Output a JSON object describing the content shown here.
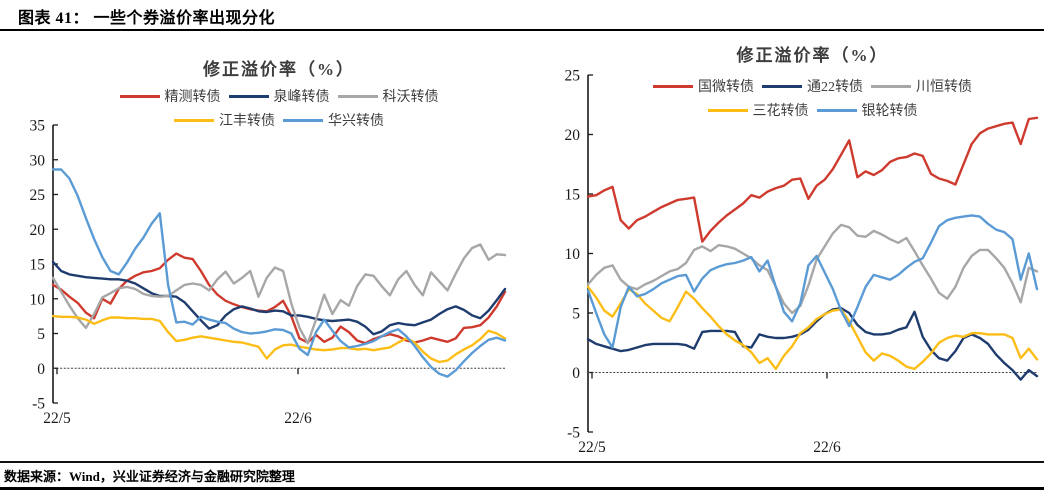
{
  "header": {
    "title": "图表 41： 一些个券溢价率出现分化"
  },
  "footer": {
    "source": "数据来源：Wind，兴业证券经济与金融研究院整理"
  },
  "colors": {
    "red": "#cf3a2e",
    "navy": "#1f3c6e",
    "gray": "#a7a7a7",
    "yellow": "#fcbd17",
    "lightblue": "#5b9bd5",
    "axis": "#1a1a1a"
  },
  "chart_data": [
    {
      "type": "line",
      "title": "修正溢价率（%）",
      "xlabel": "",
      "ylabel": "",
      "ylim": [
        -5,
        35
      ],
      "ytick_step": 5,
      "yticks": [
        35,
        30,
        25,
        20,
        15,
        10,
        5,
        0,
        -5
      ],
      "x_ticks": [
        "22/5",
        "22/6"
      ],
      "grid": false,
      "legend_position": "top",
      "series": [
        {
          "name": "精测转债",
          "color": "#cf3a2e",
          "values": [
            12.0,
            11.3,
            10.3,
            9.4,
            8.0,
            7.2,
            10.0,
            9.3,
            11.4,
            12.6,
            13.3,
            13.8,
            14.0,
            14.4,
            15.6,
            16.5,
            15.9,
            15.7,
            14.0,
            12.0,
            10.6,
            9.7,
            9.2,
            8.8,
            8.5,
            8.3,
            8.2,
            8.8,
            9.7,
            7.5,
            4.3,
            3.7,
            4.8,
            3.8,
            4.4,
            6.0,
            5.2,
            4.0,
            3.6,
            4.2,
            4.6,
            4.9,
            4.6,
            4.0,
            3.7,
            4.0,
            4.4,
            4.1,
            3.8,
            4.3,
            5.8,
            5.9,
            6.2,
            7.3,
            8.9,
            11.0
          ]
        },
        {
          "name": "泉峰转债",
          "color": "#1f3c6e",
          "values": [
            15.3,
            14.0,
            13.5,
            13.3,
            13.1,
            13.0,
            12.9,
            12.8,
            12.8,
            12.6,
            12.2,
            11.5,
            10.8,
            10.4,
            10.4,
            10.3,
            9.5,
            8.2,
            6.9,
            5.7,
            6.2,
            7.6,
            8.5,
            8.9,
            8.6,
            8.2,
            8.1,
            8.3,
            8.2,
            7.6,
            7.6,
            7.4,
            7.1,
            6.9,
            6.8,
            6.9,
            7.0,
            6.7,
            6.0,
            4.9,
            5.3,
            6.2,
            6.5,
            6.3,
            6.2,
            6.6,
            7.0,
            7.8,
            8.5,
            8.9,
            8.4,
            7.6,
            7.2,
            8.3,
            9.8,
            11.4
          ]
        },
        {
          "name": "科沃转债",
          "color": "#a7a7a7",
          "values": [
            13.0,
            11.0,
            9.0,
            7.2,
            5.8,
            7.8,
            10.2,
            10.8,
            11.5,
            11.7,
            11.4,
            10.7,
            10.4,
            10.3,
            10.4,
            11.2,
            12.0,
            12.2,
            12.0,
            11.2,
            12.8,
            13.9,
            12.2,
            13.0,
            14.0,
            10.3,
            13.0,
            14.5,
            14.0,
            9.3,
            5.8,
            3.6,
            7.0,
            10.6,
            7.8,
            9.8,
            9.0,
            11.8,
            13.5,
            13.3,
            11.8,
            10.5,
            12.8,
            14.0,
            12.0,
            10.5,
            13.8,
            12.5,
            11.2,
            13.6,
            15.8,
            17.3,
            17.8,
            15.6,
            16.4,
            16.3
          ]
        },
        {
          "name": "江丰转债",
          "color": "#fcbd17",
          "values": [
            7.5,
            7.4,
            7.4,
            7.3,
            7.0,
            6.4,
            6.9,
            7.3,
            7.3,
            7.2,
            7.2,
            7.1,
            7.1,
            6.8,
            5.2,
            3.9,
            4.1,
            4.4,
            4.6,
            4.4,
            4.2,
            4.0,
            3.8,
            3.7,
            3.4,
            3.1,
            1.4,
            2.7,
            3.3,
            3.4,
            3.1,
            2.9,
            2.7,
            2.6,
            2.7,
            2.9,
            2.9,
            2.7,
            2.8,
            2.6,
            2.8,
            3.0,
            3.7,
            4.3,
            3.7,
            2.4,
            1.4,
            0.9,
            1.1,
            2.0,
            2.7,
            3.3,
            4.2,
            5.4,
            5.0,
            4.3
          ]
        },
        {
          "name": "华兴转债",
          "color": "#5b9bd5",
          "values": [
            28.6,
            28.6,
            27.3,
            24.8,
            21.6,
            18.6,
            16.0,
            14.0,
            13.5,
            15.2,
            17.2,
            18.8,
            20.8,
            22.3,
            12.0,
            6.6,
            6.7,
            6.3,
            7.4,
            7.0,
            6.7,
            6.5,
            5.7,
            5.2,
            5.0,
            5.1,
            5.3,
            5.6,
            5.5,
            5.0,
            2.8,
            1.9,
            5.2,
            7.0,
            5.4,
            3.9,
            3.0,
            3.2,
            3.5,
            3.9,
            4.6,
            5.2,
            5.6,
            4.6,
            3.2,
            1.6,
            0.2,
            -0.8,
            -1.2,
            -0.3,
            1.0,
            2.2,
            3.2,
            4.1,
            4.4,
            4.0
          ]
        }
      ]
    },
    {
      "type": "line",
      "title": "修正溢价率（%）",
      "xlabel": "",
      "ylabel": "",
      "ylim": [
        -5,
        25
      ],
      "ytick_step": 5,
      "yticks": [
        25,
        20,
        15,
        10,
        5,
        0,
        -5
      ],
      "x_ticks": [
        "22/5",
        "22/6"
      ],
      "grid": false,
      "legend_position": "top",
      "series": [
        {
          "name": "国微转债",
          "color": "#cf3a2e",
          "values": [
            14.8,
            14.9,
            15.3,
            15.6,
            12.8,
            12.1,
            12.8,
            13.1,
            13.5,
            13.9,
            14.2,
            14.5,
            14.6,
            14.7,
            11.0,
            11.9,
            12.6,
            13.2,
            13.7,
            14.2,
            14.9,
            14.7,
            15.2,
            15.5,
            15.7,
            16.2,
            16.3,
            14.6,
            15.7,
            16.2,
            17.1,
            18.3,
            19.5,
            16.4,
            16.9,
            16.6,
            17.0,
            17.7,
            18.0,
            18.1,
            18.4,
            18.2,
            16.7,
            16.3,
            16.1,
            15.8,
            17.5,
            19.2,
            20.1,
            20.5,
            20.7,
            20.9,
            21.0,
            19.2,
            21.3,
            21.4
          ]
        },
        {
          "name": "通22转债",
          "color": "#1f3c6e",
          "values": [
            2.8,
            2.4,
            2.2,
            2.0,
            1.8,
            1.9,
            2.1,
            2.3,
            2.4,
            2.4,
            2.4,
            2.4,
            2.3,
            2.0,
            3.4,
            3.5,
            3.5,
            3.5,
            3.4,
            2.2,
            2.1,
            3.2,
            3.0,
            2.9,
            2.9,
            3.0,
            3.2,
            3.6,
            4.3,
            4.9,
            5.3,
            5.4,
            5.0,
            4.0,
            3.4,
            3.2,
            3.2,
            3.3,
            3.6,
            3.8,
            5.1,
            3.0,
            1.9,
            1.2,
            1.0,
            1.8,
            2.9,
            3.2,
            2.9,
            2.4,
            1.5,
            0.8,
            0.2,
            -0.6,
            0.2,
            -0.3
          ]
        },
        {
          "name": "川恒转债",
          "color": "#a7a7a7",
          "values": [
            7.4,
            8.2,
            8.8,
            9.0,
            7.8,
            7.2,
            7.0,
            7.4,
            7.7,
            8.1,
            8.5,
            8.7,
            9.2,
            10.3,
            10.6,
            10.2,
            10.7,
            10.6,
            10.4,
            10.0,
            9.6,
            9.0,
            8.6,
            7.2,
            5.8,
            5.0,
            5.6,
            7.3,
            9.5,
            10.6,
            11.7,
            12.4,
            12.2,
            11.5,
            11.4,
            11.9,
            11.6,
            11.2,
            10.9,
            11.3,
            10.2,
            9.0,
            7.9,
            6.7,
            6.2,
            7.2,
            8.8,
            9.8,
            10.3,
            10.3,
            9.6,
            8.8,
            7.5,
            5.9,
            8.8,
            8.5
          ]
        },
        {
          "name": "三花转债",
          "color": "#fcbd17",
          "values": [
            7.2,
            6.3,
            5.2,
            4.7,
            5.8,
            7.0,
            6.6,
            5.8,
            5.2,
            4.6,
            4.3,
            5.5,
            6.8,
            6.2,
            5.4,
            4.7,
            3.9,
            3.2,
            2.7,
            2.3,
            1.7,
            0.8,
            1.2,
            0.3,
            1.4,
            2.2,
            3.3,
            3.8,
            4.5,
            4.9,
            5.2,
            5.3,
            4.3,
            3.0,
            1.7,
            1.0,
            1.6,
            1.4,
            1.0,
            0.5,
            0.3,
            0.9,
            1.6,
            2.5,
            2.9,
            3.1,
            3.0,
            3.3,
            3.3,
            3.2,
            3.2,
            3.2,
            2.9,
            1.2,
            2.0,
            1.1
          ]
        },
        {
          "name": "银轮转债",
          "color": "#5b9bd5",
          "values": [
            6.9,
            5.0,
            3.2,
            2.1,
            5.5,
            7.2,
            6.4,
            6.6,
            7.0,
            7.5,
            7.8,
            8.1,
            8.2,
            6.8,
            7.9,
            8.6,
            8.9,
            9.1,
            9.2,
            9.4,
            9.7,
            8.5,
            9.4,
            7.2,
            5.1,
            4.3,
            5.8,
            9.0,
            9.8,
            8.4,
            7.0,
            5.2,
            3.9,
            5.5,
            7.2,
            8.2,
            8.0,
            7.8,
            8.2,
            8.8,
            9.3,
            9.6,
            10.9,
            12.3,
            12.8,
            13.0,
            13.1,
            13.2,
            13.1,
            12.5,
            12.0,
            11.8,
            11.2,
            7.8,
            10.0,
            7.0
          ]
        }
      ]
    }
  ]
}
